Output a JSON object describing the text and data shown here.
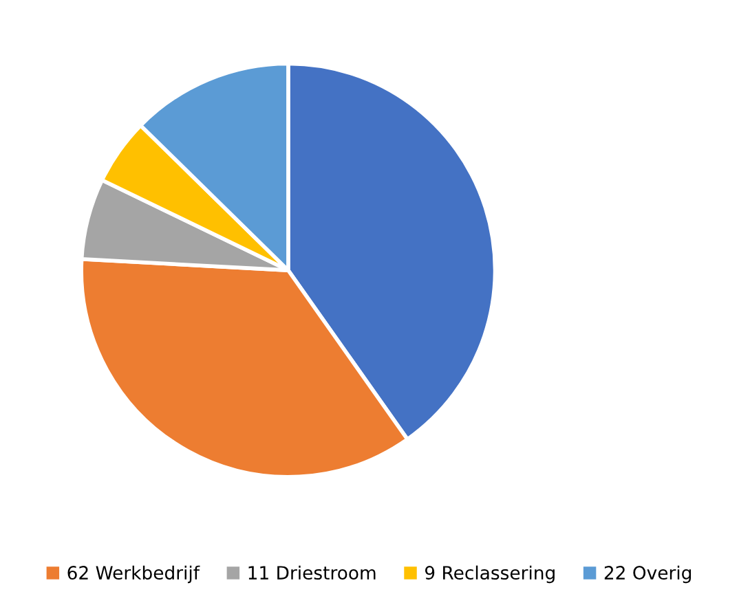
{
  "chart_data": {
    "type": "pie",
    "categories": [
      null,
      "62 Werkbedrijf",
      "11 Driestroom",
      "9 Reclassering",
      "22 Overig"
    ],
    "values": [
      70,
      62,
      11,
      9,
      22
    ],
    "colors": [
      "#4472c4",
      "#ed7d31",
      "#a5a5a5",
      "#ffc000",
      "#5b9bd5"
    ],
    "legend": "bottom"
  }
}
